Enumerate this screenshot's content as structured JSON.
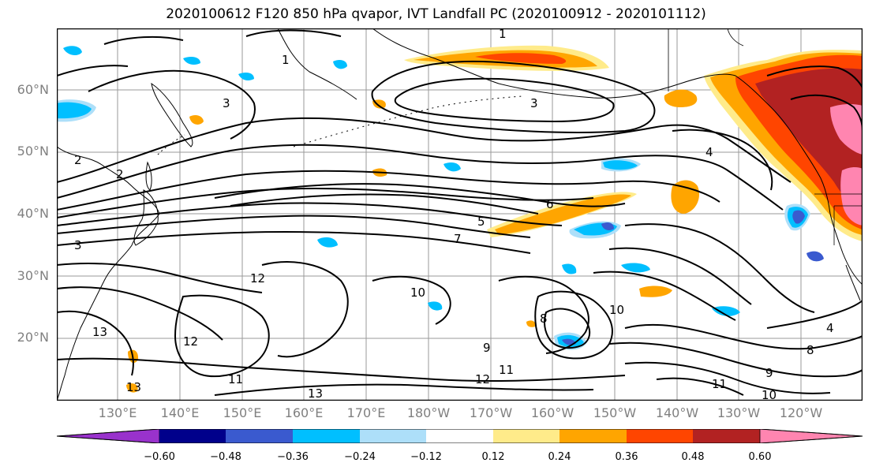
{
  "title": "2020100612 F120 850 hPa qvapor, IVT Landfall PC (2020100912 - 2020101112)",
  "map": {
    "lat_labels": [
      "60°N",
      "50°N",
      "40°N",
      "30°N",
      "20°N"
    ],
    "lon_labels": [
      "130°E",
      "140°E",
      "150°E",
      "160°E",
      "170°E",
      "180°W",
      "170°W",
      "160°W",
      "150°W",
      "140°W",
      "130°W",
      "120°W"
    ],
    "contour_labels": [
      "1",
      "1",
      "2",
      "2",
      "3",
      "3",
      "3",
      "4",
      "4",
      "5",
      "6",
      "7",
      "8",
      "8",
      "9",
      "9",
      "10",
      "10",
      "10",
      "11",
      "11",
      "11",
      "12",
      "12",
      "12",
      "13",
      "13",
      "13"
    ]
  },
  "colorbar": {
    "ticks": [
      "−0.60",
      "−0.48",
      "−0.36",
      "−0.24",
      "−0.12",
      "0.12",
      "0.24",
      "0.36",
      "0.48",
      "0.60"
    ],
    "colors": [
      "#9932CC",
      "#00008B",
      "#3A5ACF",
      "#00BFFF",
      "#ADDFF9",
      "#FFFFFF",
      "#FFEB8A",
      "#FFA500",
      "#FF4500",
      "#B22222",
      "#FF85B0"
    ]
  }
}
